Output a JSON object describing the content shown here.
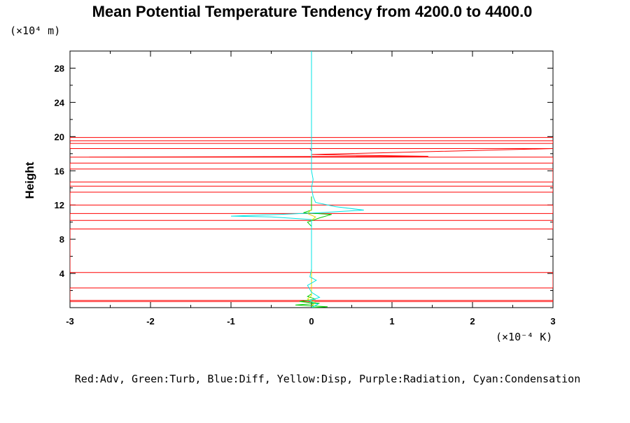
{
  "chart_data": {
    "type": "line",
    "title": "Mean Potential Temperature Tendency from 4200.0 to 4400.0",
    "ylabel": "Height",
    "y_unit_label": "(×10⁴ m)",
    "x_unit_label": "(×10⁻⁴ K)",
    "legend_note": "Red:Adv, Green:Turb, Blue:Diff, Yellow:Disp, Purple:Radiation, Cyan:Condensation",
    "xlim": [
      -3,
      3
    ],
    "ylim": [
      0,
      30
    ],
    "x_ticks": [
      -3,
      -2,
      -1,
      0,
      1,
      2,
      3
    ],
    "x_tick_labels": [
      "-3",
      "-2",
      "-1",
      "0",
      "1",
      "2",
      "3"
    ],
    "y_ticks": [
      4,
      8,
      12,
      16,
      20,
      24,
      28
    ],
    "y_tick_labels": [
      "4",
      "8",
      "12",
      "16",
      "20",
      "24",
      "28"
    ],
    "series": [
      {
        "name": "Red:Adv",
        "color": "#ff0000",
        "points": [
          [
            -3,
            0.7
          ],
          [
            3,
            0.7
          ],
          [
            3,
            0.85
          ],
          [
            -3,
            0.85
          ],
          [
            -3,
            2.3
          ],
          [
            3,
            2.3
          ],
          [
            3,
            4.1
          ],
          [
            -3,
            4.1
          ],
          [
            -3,
            9.2
          ],
          [
            3,
            9.2
          ],
          [
            3,
            10.2
          ],
          [
            -3,
            10.2
          ],
          [
            -3,
            11.0
          ],
          [
            3,
            11.0
          ],
          [
            3,
            12.0
          ],
          [
            -3,
            12.0
          ],
          [
            -3,
            13.5
          ],
          [
            3,
            13.5
          ],
          [
            3,
            14.2
          ],
          [
            -3,
            14.2
          ],
          [
            -3,
            14.7
          ],
          [
            3,
            14.7
          ],
          [
            3,
            16.2
          ],
          [
            -3,
            16.2
          ],
          [
            -3,
            16.9
          ],
          [
            3,
            16.9
          ],
          [
            3,
            17.6
          ],
          [
            -3,
            17.6
          ],
          [
            1.45,
            17.7
          ],
          [
            0.0,
            17.9
          ],
          [
            3,
            18.6
          ],
          [
            -3,
            18.6
          ],
          [
            -3,
            19.2
          ],
          [
            3,
            19.2
          ],
          [
            3,
            19.5
          ],
          [
            -3,
            19.5
          ],
          [
            -3,
            19.9
          ],
          [
            3,
            19.9
          ]
        ]
      },
      {
        "name": "Green:Turb",
        "color": "#00cc00",
        "points": [
          [
            0.0,
            0.0
          ],
          [
            0.2,
            0.1
          ],
          [
            -0.2,
            0.3
          ],
          [
            0.1,
            0.5
          ],
          [
            -0.15,
            0.7
          ],
          [
            0.05,
            1.0
          ],
          [
            -0.05,
            1.3
          ],
          [
            0.0,
            1.6
          ],
          [
            0.0,
            9.5
          ],
          [
            -0.05,
            10.0
          ],
          [
            0.1,
            10.5
          ],
          [
            0.25,
            10.9
          ],
          [
            -0.1,
            11.1
          ],
          [
            0.0,
            11.4
          ],
          [
            0.0,
            13.0
          ]
        ]
      },
      {
        "name": "Yellow:Disp",
        "color": "#dddd00",
        "points": [
          [
            0.0,
            0.2
          ],
          [
            0.05,
            0.6
          ],
          [
            -0.05,
            1.0
          ],
          [
            0.0,
            1.4
          ],
          [
            0.0,
            10.2
          ],
          [
            0.05,
            10.6
          ],
          [
            -0.05,
            11.0
          ],
          [
            0.0,
            11.5
          ]
        ]
      },
      {
        "name": "Purple:Radiation",
        "color": "#990066",
        "points": [
          [
            0.0,
            16.5
          ],
          [
            0.0,
            18.3
          ],
          [
            -0.02,
            18.6
          ]
        ]
      },
      {
        "name": "Cyan:Condensation",
        "color": "#00e5e5",
        "points": [
          [
            0.0,
            0.0
          ],
          [
            0.08,
            0.4
          ],
          [
            -0.03,
            0.8
          ],
          [
            0.1,
            1.2
          ],
          [
            0.0,
            1.8
          ],
          [
            -0.05,
            2.6
          ],
          [
            0.06,
            3.2
          ],
          [
            -0.02,
            3.6
          ],
          [
            0.0,
            4.5
          ],
          [
            0.0,
            10.3
          ],
          [
            -0.5,
            10.6
          ],
          [
            -1.0,
            10.7
          ],
          [
            -0.4,
            10.9
          ],
          [
            0.1,
            11.1
          ],
          [
            0.65,
            11.4
          ],
          [
            0.3,
            11.8
          ],
          [
            0.05,
            12.3
          ],
          [
            0.02,
            13.0
          ],
          [
            0.0,
            14.0
          ],
          [
            0.02,
            15.0
          ],
          [
            0.0,
            16.0
          ],
          [
            0.0,
            30.0
          ]
        ]
      }
    ]
  }
}
